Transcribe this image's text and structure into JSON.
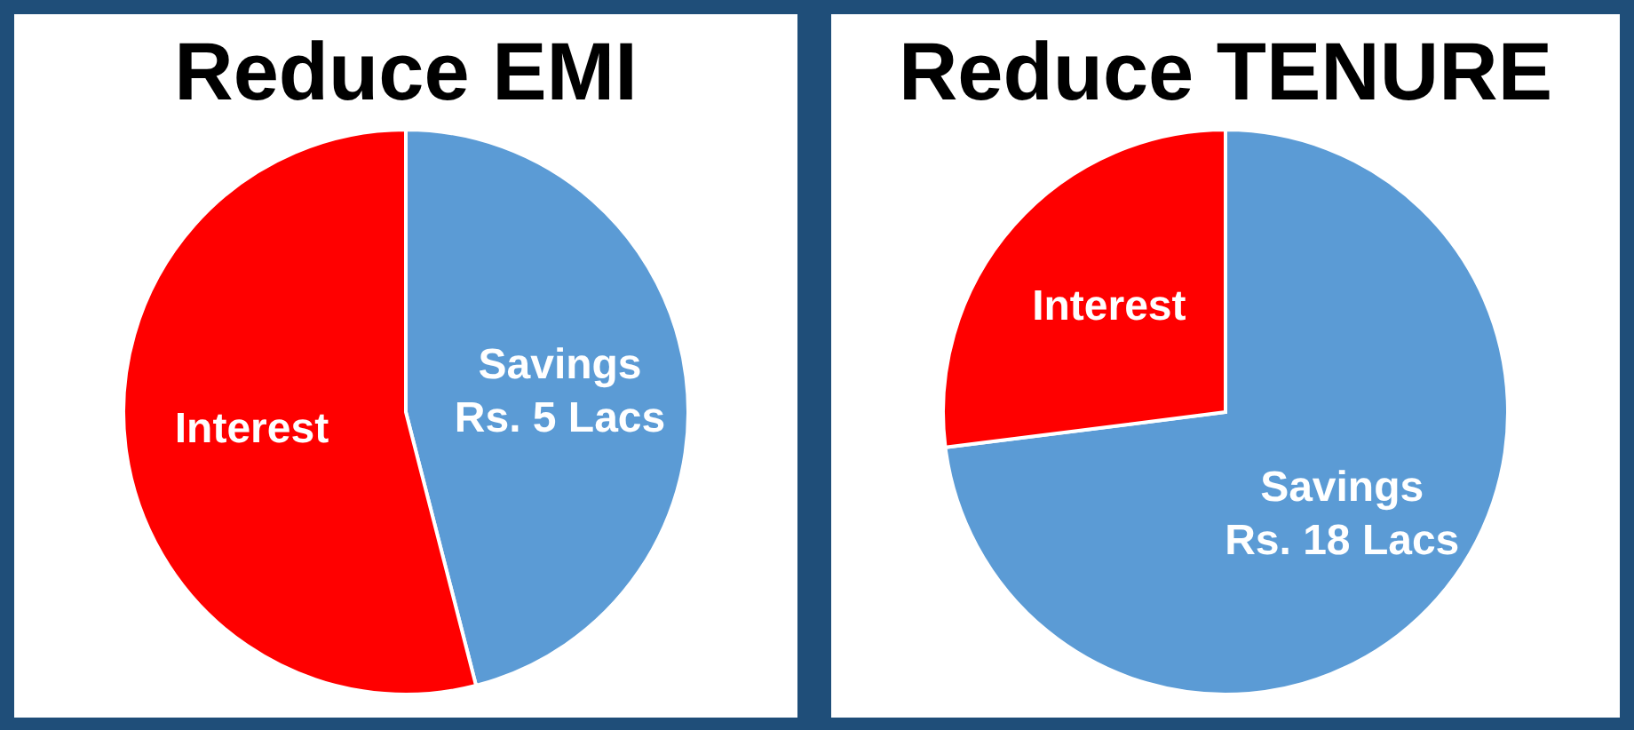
{
  "chart_data": [
    {
      "type": "pie",
      "title": "Reduce EMI",
      "categories": [
        "Savings Rs. 5 Lacs",
        "Interest"
      ],
      "values": [
        46,
        54
      ],
      "colors": [
        "#5b9bd5",
        "#ff0000"
      ]
    },
    {
      "type": "pie",
      "title": "Reduce TENURE",
      "categories": [
        "Savings Rs. 18 Lacs",
        "Interest"
      ],
      "values": [
        73,
        27
      ],
      "colors": [
        "#5b9bd5",
        "#ff0000"
      ]
    }
  ]
}
